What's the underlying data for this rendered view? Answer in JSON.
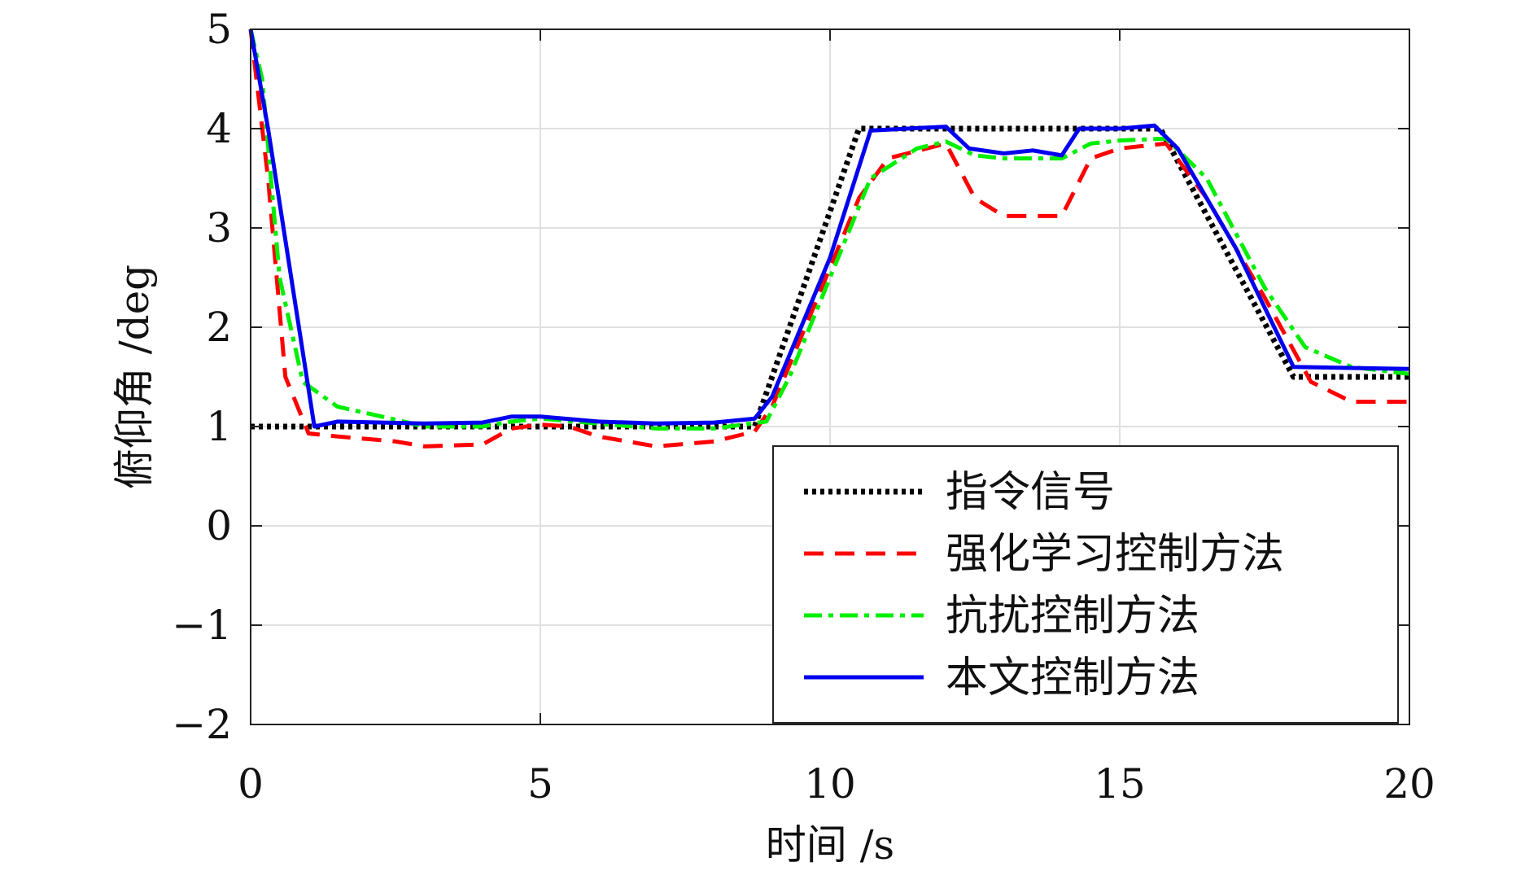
{
  "chart_data": {
    "type": "line",
    "title": "",
    "xlabel": "时间 /s",
    "ylabel": "俯仰角 /deg",
    "xlim": [
      0,
      20
    ],
    "ylim": [
      -2,
      5
    ],
    "xticks": [
      0,
      5,
      10,
      15,
      20
    ],
    "xtick_labels": [
      "0",
      "5",
      "10",
      "15",
      "20"
    ],
    "yticks": [
      -2,
      -1,
      0,
      1,
      2,
      3,
      4,
      5
    ],
    "ytick_labels": [
      "−2",
      "−1",
      "0",
      "1",
      "2",
      "3",
      "4",
      "5"
    ],
    "grid": true,
    "legend_position": "bottom-right",
    "series": [
      {
        "name": "指令信号",
        "color": "#000000",
        "style": "dotted",
        "x": [
          0,
          8.7,
          10.5,
          15.7,
          18,
          20
        ],
        "y": [
          1,
          1,
          4,
          4,
          1.5,
          1.5
        ]
      },
      {
        "name": "强化学习控制方法",
        "color": "#ff0000",
        "style": "dashed",
        "x": [
          0,
          0.3,
          0.6,
          1,
          1.5,
          2.5,
          3,
          4,
          4.5,
          5,
          5.5,
          6,
          7,
          8,
          8.7,
          9,
          10,
          10.5,
          11,
          12,
          12.5,
          13,
          14,
          14.5,
          15,
          15.8,
          16.5,
          17.5,
          18.3,
          19,
          20
        ],
        "y": [
          5,
          3.5,
          1.5,
          0.93,
          0.9,
          0.85,
          0.8,
          0.82,
          0.98,
          1.02,
          1.0,
          0.9,
          0.8,
          0.85,
          0.95,
          1.2,
          2.6,
          3.3,
          3.7,
          3.85,
          3.3,
          3.12,
          3.12,
          3.7,
          3.8,
          3.85,
          3.3,
          2.3,
          1.45,
          1.25,
          1.25
        ]
      },
      {
        "name": "抗扰控制方法",
        "color": "#00ee00",
        "style": "dashdot",
        "x": [
          0,
          0.2,
          0.5,
          0.9,
          1.5,
          2.5,
          3,
          4,
          4.5,
          5,
          6,
          7,
          8,
          8.9,
          9.3,
          10,
          10.7,
          11.5,
          12,
          12.5,
          13,
          14,
          14.5,
          15,
          15.8,
          16.5,
          17.5,
          18.2,
          19,
          20
        ],
        "y": [
          5,
          4.5,
          2.5,
          1.45,
          1.2,
          1.07,
          1.0,
          1.0,
          1.05,
          1.08,
          1.03,
          0.98,
          0.98,
          1.05,
          1.5,
          2.5,
          3.5,
          3.8,
          3.87,
          3.73,
          3.7,
          3.7,
          3.85,
          3.88,
          3.9,
          3.5,
          2.4,
          1.8,
          1.6,
          1.53
        ]
      },
      {
        "name": "本文控制方法",
        "color": "#0000ee",
        "style": "solid",
        "x": [
          0,
          0.3,
          1.1,
          1.5,
          3,
          4,
          4.5,
          5,
          6,
          7,
          8,
          8.7,
          9,
          10,
          10.7,
          12,
          12.4,
          13,
          13.5,
          14,
          14.3,
          15,
          15.6,
          16,
          17,
          18,
          20
        ],
        "y": [
          5,
          4,
          1.0,
          1.05,
          1.03,
          1.04,
          1.1,
          1.1,
          1.05,
          1.03,
          1.04,
          1.08,
          1.3,
          2.7,
          3.98,
          4.02,
          3.8,
          3.75,
          3.78,
          3.73,
          4.0,
          4.0,
          4.03,
          3.8,
          2.8,
          1.6,
          1.58
        ]
      }
    ]
  }
}
